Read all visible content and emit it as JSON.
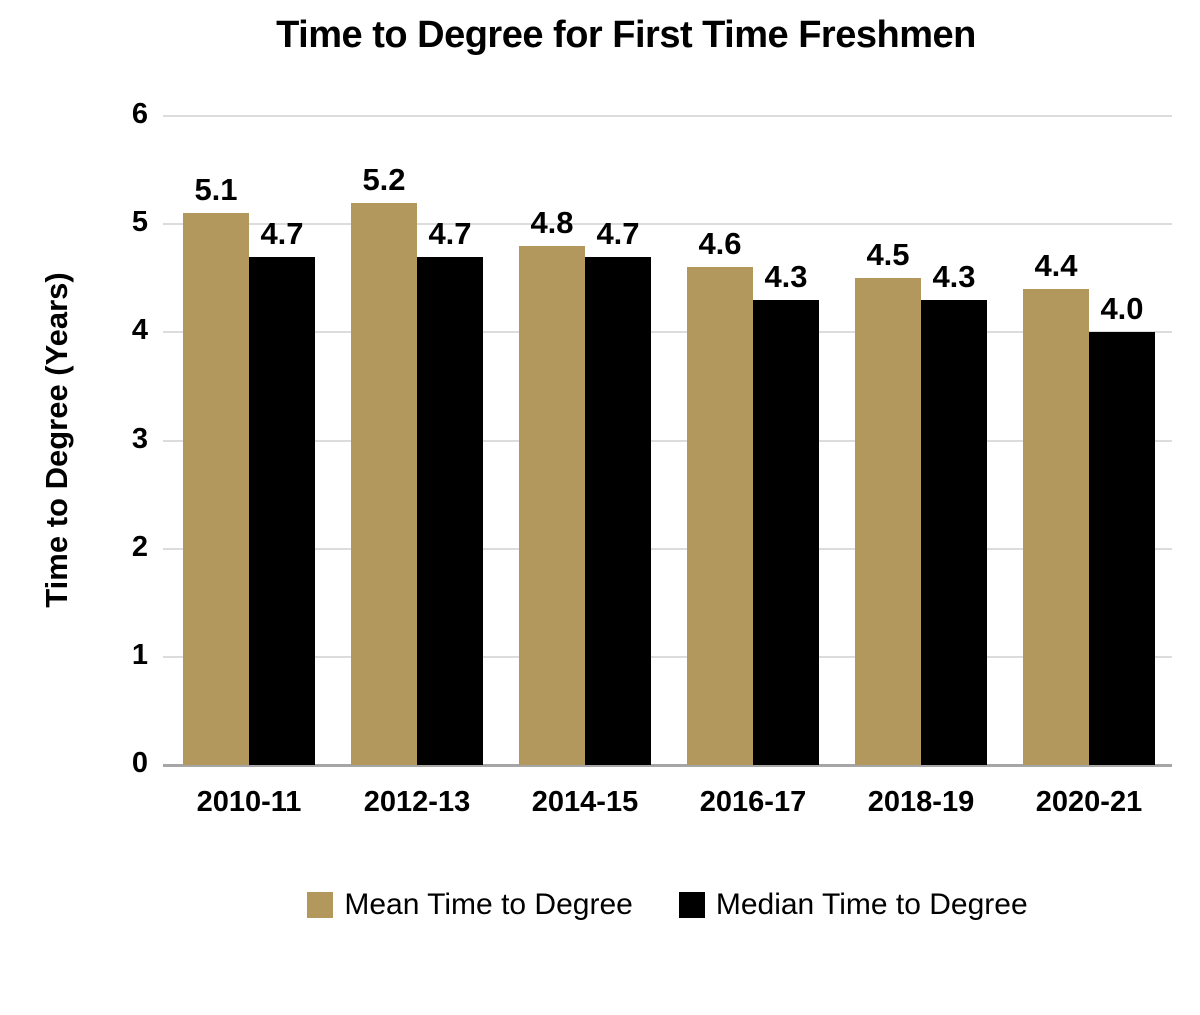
{
  "chart_data": {
    "type": "bar",
    "title": "Time to Degree for First Time Freshmen",
    "xlabel": "",
    "ylabel": "Time to Degree (Years)",
    "categories": [
      "2010-11",
      "2012-13",
      "2014-15",
      "2016-17",
      "2018-19",
      "2020-21"
    ],
    "series": [
      {
        "name": "Mean Time to Degree",
        "color": "#B2985C",
        "values": [
          5.1,
          5.2,
          4.8,
          4.6,
          4.5,
          4.4
        ]
      },
      {
        "name": "Median Time to Degree",
        "color": "#000000",
        "values": [
          4.7,
          4.7,
          4.7,
          4.3,
          4.3,
          4.0
        ]
      }
    ],
    "ylim": [
      0,
      6
    ],
    "yticks": [
      0,
      1,
      2,
      3,
      4,
      5,
      6
    ],
    "grid": true,
    "data_labels": true,
    "legend_position": "bottom"
  },
  "colors": {
    "gridline": "#DCDCDC",
    "axis_line": "#A6A6A6",
    "text": "#000000",
    "background": "#FFFFFF"
  }
}
